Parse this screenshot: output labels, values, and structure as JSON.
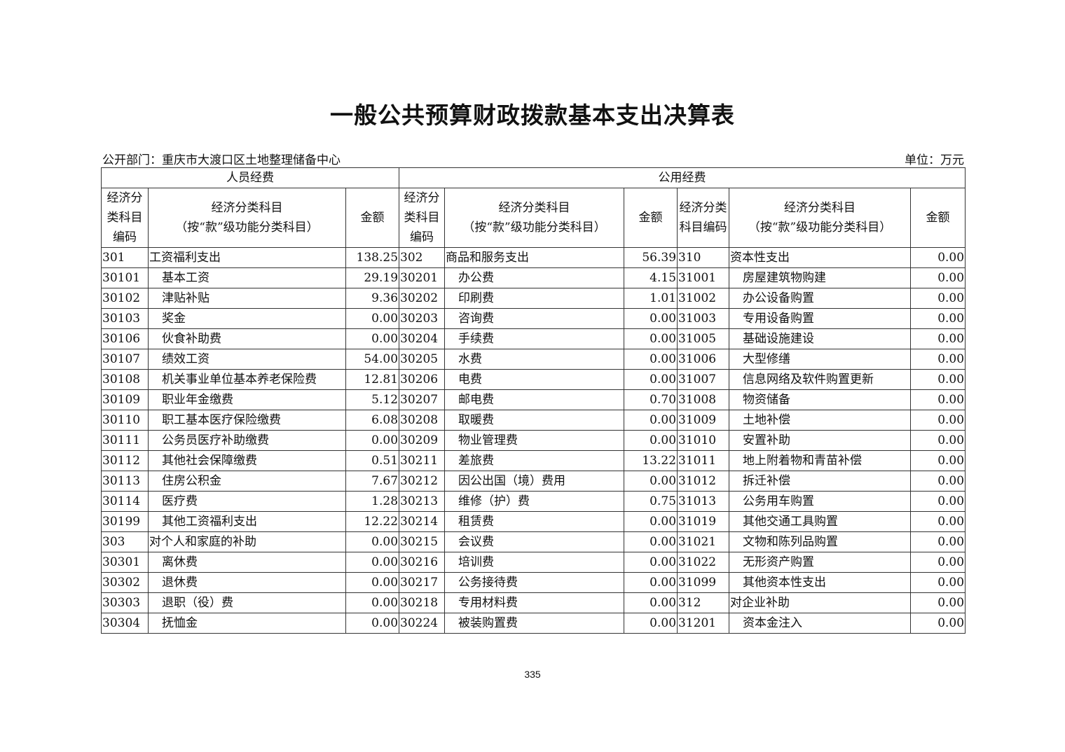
{
  "title": "一般公共预算财政拨款基本支出决算表",
  "department": "公开部门：重庆市大渡口区土地整理储备中心",
  "unit": "单位：万元",
  "groups": {
    "personnel": "人员经费",
    "public": "公用经费"
  },
  "headers": {
    "code": "经济分类科目编码",
    "name_line1": "经济分类科目",
    "name_line2": "（按“款”级功能分类科目）",
    "amount": "金额"
  },
  "rows": [
    [
      [
        "301",
        "工资福利支出",
        "138.25",
        0
      ],
      [
        "302",
        "商品和服务支出",
        "56.39",
        0
      ],
      [
        "310",
        "资本性支出",
        "0.00",
        0
      ]
    ],
    [
      [
        "30101",
        "基本工资",
        "29.19",
        1
      ],
      [
        "30201",
        "办公费",
        "4.15",
        1
      ],
      [
        "31001",
        "房屋建筑物购建",
        "0.00",
        1
      ]
    ],
    [
      [
        "30102",
        "津贴补贴",
        "9.36",
        1
      ],
      [
        "30202",
        "印刷费",
        "1.01",
        1
      ],
      [
        "31002",
        "办公设备购置",
        "0.00",
        1
      ]
    ],
    [
      [
        "30103",
        "奖金",
        "0.00",
        1
      ],
      [
        "30203",
        "咨询费",
        "0.00",
        1
      ],
      [
        "31003",
        "专用设备购置",
        "0.00",
        1
      ]
    ],
    [
      [
        "30106",
        "伙食补助费",
        "0.00",
        1
      ],
      [
        "30204",
        "手续费",
        "0.00",
        1
      ],
      [
        "31005",
        "基础设施建设",
        "0.00",
        1
      ]
    ],
    [
      [
        "30107",
        "绩效工资",
        "54.00",
        1
      ],
      [
        "30205",
        "水费",
        "0.00",
        1
      ],
      [
        "31006",
        "大型修缮",
        "0.00",
        1
      ]
    ],
    [
      [
        "30108",
        "机关事业单位基本养老保险费",
        "12.81",
        1
      ],
      [
        "30206",
        "电费",
        "0.00",
        1
      ],
      [
        "31007",
        "信息网络及软件购置更新",
        "0.00",
        1
      ]
    ],
    [
      [
        "30109",
        "职业年金缴费",
        "5.12",
        1
      ],
      [
        "30207",
        "邮电费",
        "0.70",
        1
      ],
      [
        "31008",
        "物资储备",
        "0.00",
        1
      ]
    ],
    [
      [
        "30110",
        "职工基本医疗保险缴费",
        "6.08",
        1
      ],
      [
        "30208",
        "取暖费",
        "0.00",
        1
      ],
      [
        "31009",
        "土地补偿",
        "0.00",
        1
      ]
    ],
    [
      [
        "30111",
        "公务员医疗补助缴费",
        "0.00",
        1
      ],
      [
        "30209",
        "物业管理费",
        "0.00",
        1
      ],
      [
        "31010",
        "安置补助",
        "0.00",
        1
      ]
    ],
    [
      [
        "30112",
        "其他社会保障缴费",
        "0.51",
        1
      ],
      [
        "30211",
        "差旅费",
        "13.22",
        1
      ],
      [
        "31011",
        "地上附着物和青苗补偿",
        "0.00",
        1
      ]
    ],
    [
      [
        "30113",
        "住房公积金",
        "7.67",
        1
      ],
      [
        "30212",
        "因公出国（境）费用",
        "0.00",
        1
      ],
      [
        "31012",
        "拆迁补偿",
        "0.00",
        1
      ]
    ],
    [
      [
        "30114",
        "医疗费",
        "1.28",
        1
      ],
      [
        "30213",
        "维修（护）费",
        "0.75",
        1
      ],
      [
        "31013",
        "公务用车购置",
        "0.00",
        1
      ]
    ],
    [
      [
        "30199",
        "其他工资福利支出",
        "12.22",
        1
      ],
      [
        "30214",
        "租赁费",
        "0.00",
        1
      ],
      [
        "31019",
        "其他交通工具购置",
        "0.00",
        1
      ]
    ],
    [
      [
        "303",
        "对个人和家庭的补助",
        "0.00",
        0
      ],
      [
        "30215",
        "会议费",
        "0.00",
        1
      ],
      [
        "31021",
        "文物和陈列品购置",
        "0.00",
        1
      ]
    ],
    [
      [
        "30301",
        "离休费",
        "0.00",
        1
      ],
      [
        "30216",
        "培训费",
        "0.00",
        1
      ],
      [
        "31022",
        "无形资产购置",
        "0.00",
        1
      ]
    ],
    [
      [
        "30302",
        "退休费",
        "0.00",
        1
      ],
      [
        "30217",
        "公务接待费",
        "0.00",
        1
      ],
      [
        "31099",
        "其他资本性支出",
        "0.00",
        1
      ]
    ],
    [
      [
        "30303",
        "退职（役）费",
        "0.00",
        1
      ],
      [
        "30218",
        "专用材料费",
        "0.00",
        1
      ],
      [
        "312",
        "对企业补助",
        "0.00",
        0
      ]
    ],
    [
      [
        "30304",
        "抚恤金",
        "0.00",
        1
      ],
      [
        "30224",
        "被装购置费",
        "0.00",
        1
      ],
      [
        "31201",
        "资本金注入",
        "0.00",
        1
      ]
    ]
  ],
  "page_number": "335"
}
